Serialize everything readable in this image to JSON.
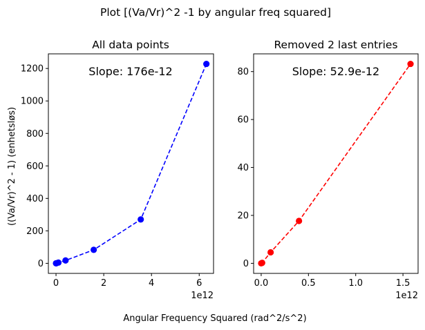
{
  "chart_data": {
    "suptitle": "Plot [(Va/Vr)^2 -1 by angular freq squared]",
    "xlabel": "Angular Frequency Squared (rad^2/s^2)",
    "ylabel": "((Va/Vr)^2 - 1) (enhetsløs)",
    "panels": [
      {
        "type": "line",
        "title": "All data points",
        "annotation": "Slope: 176e-12",
        "color": "#0000ff",
        "line_style": "dashed",
        "marker": "circle",
        "x_offset_label": "1e12",
        "x": [
          0.0,
          0.01,
          0.1,
          0.4,
          1.58,
          3.55,
          6.3
        ],
        "y": [
          0.0,
          0.2,
          4.6,
          17.7,
          83,
          270,
          1228
        ],
        "xlim": [
          -0.32,
          6.6
        ],
        "ylim": [
          -62,
          1290
        ],
        "xticks": [
          0,
          2,
          4,
          6
        ],
        "xtick_labels": [
          "0",
          "2",
          "4",
          "6"
        ],
        "yticks": [
          0,
          200,
          400,
          600,
          800,
          1000,
          1200
        ],
        "ytick_labels": [
          "0",
          "200",
          "400",
          "600",
          "800",
          "1000",
          "1200"
        ]
      },
      {
        "type": "line",
        "title": "Removed 2 last entries",
        "annotation": "Slope: 52.9e-12",
        "color": "#ff0000",
        "line_style": "dashed",
        "marker": "circle",
        "x_offset_label": "1e12",
        "x": [
          0.0,
          0.01,
          0.1,
          0.4,
          1.58
        ],
        "y": [
          0.0,
          0.2,
          4.6,
          17.7,
          83.2
        ],
        "xlim": [
          -0.08,
          1.66
        ],
        "ylim": [
          -4.2,
          87.4
        ],
        "xticks": [
          0.0,
          0.5,
          1.0,
          1.5
        ],
        "xtick_labels": [
          "0.0",
          "0.5",
          "1.0",
          "1.5"
        ],
        "yticks": [
          0,
          20,
          40,
          60,
          80
        ],
        "ytick_labels": [
          "0",
          "20",
          "40",
          "60",
          "80"
        ]
      }
    ]
  }
}
